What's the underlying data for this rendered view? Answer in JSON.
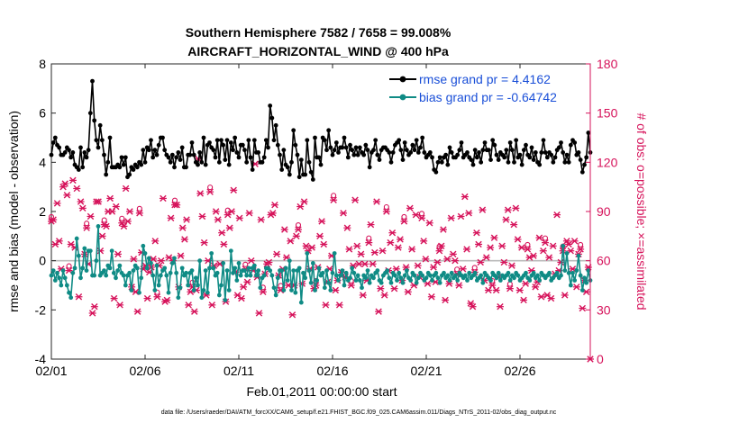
{
  "chart_data": {
    "type": "line",
    "title": "Southern Hemisphere 7582 / 7658 = 99.008%",
    "subtitle": "AIRCRAFT_HORIZONTAL_WIND @ 400 hPa",
    "ylabel_left": "rmse and bias (model - observation)",
    "ylabel_right": "# of obs: o=possible; ×=assimilated",
    "xlabel": "Feb.01,2011 00:00:00 start",
    "footer": "data file: /Users/raeder/DAI/ATM_forcXX/CAM6_setup/f.e21.FHIST_BGC.f09_025.CAM6assim.011/Diags_NTrS_2011-02/obs_diag_output.nc",
    "xlim": [
      0,
      28.75
    ],
    "ylim_left": [
      -4,
      8
    ],
    "ylim_right": [
      0,
      180
    ],
    "x_ticks": [
      {
        "label": "02/01",
        "value": 0
      },
      {
        "label": "02/06",
        "value": 5
      },
      {
        "label": "02/11",
        "value": 10
      },
      {
        "label": "02/16",
        "value": 15
      },
      {
        "label": "02/21",
        "value": 20
      },
      {
        "label": "02/26",
        "value": 25
      }
    ],
    "y_ticks_left": [
      -4,
      -2,
      0,
      2,
      4,
      6,
      8
    ],
    "y_ticks_right": [
      0,
      30,
      60,
      90,
      120,
      150,
      180
    ],
    "colors": {
      "rmse": "#000000",
      "bias": "#0f8b85",
      "obs": "#d6125a",
      "zero_line": "#bbbbbb",
      "legend_text": "#1a4fd8"
    },
    "series": [
      {
        "name": "rmse grand pr = 4.4162",
        "axis": "left",
        "values": [
          4.3,
          4.8,
          5.0,
          4.7,
          4.6,
          4.3,
          4.3,
          4.4,
          4.6,
          4.5,
          4.2,
          4.4,
          3.9,
          3.8,
          3.7,
          4.6,
          3.8,
          4.4,
          4.2,
          4.5,
          6.0,
          7.3,
          5.7,
          4.9,
          4.6,
          5.5,
          4.9,
          4.3,
          3.5,
          4.0,
          5.0,
          3.8,
          3.8,
          3.8,
          3.9,
          3.8,
          4.2,
          3.9,
          4.2,
          3.4,
          3.5,
          3.8,
          3.7,
          3.9,
          3.8,
          4.0,
          3.9,
          4.5,
          4.0,
          4.6,
          4.5,
          4.9,
          4.2,
          4.5,
          4.3,
          4.7,
          5.0,
          5.0,
          4.5,
          4.3,
          4.2,
          4.0,
          4.3,
          3.8,
          4.2,
          4.4,
          4.1,
          4.6,
          3.8,
          3.8,
          4.3,
          4.3,
          4.8,
          4.3,
          4.0,
          3.9,
          4.4,
          4.0,
          5.0,
          3.9,
          4.7,
          4.8,
          4.6,
          4.5,
          4.2,
          4.9,
          4.0,
          4.9,
          4.7,
          4.1,
          4.9,
          3.9,
          4.8,
          4.5,
          5.0,
          4.4,
          4.2,
          4.7,
          4.7,
          4.5,
          4.0,
          4.9,
          4.2,
          3.7,
          4.9,
          4.4,
          4.4,
          4.0,
          4.0,
          4.2,
          4.9,
          4.6,
          6.3,
          5.8,
          4.9,
          5.5,
          4.7,
          4.3,
          3.7,
          4.5,
          3.9,
          3.8,
          3.5,
          4.0,
          5.3,
          4.7,
          4.3,
          3.4,
          4.1,
          3.5,
          3.5,
          4.9,
          4.0,
          3.6,
          3.3,
          5.0,
          4.2,
          4.2,
          3.9,
          5.0,
          4.9,
          4.5,
          5.3,
          4.6,
          4.3,
          4.5,
          4.8,
          4.4,
          4.6,
          4.6,
          5.0,
          4.6,
          4.2,
          4.7,
          4.5,
          4.3,
          4.6,
          4.3,
          4.6,
          4.4,
          4.3,
          4.7,
          4.5,
          3.8,
          4.4,
          4.5,
          4.9,
          4.3,
          4.1,
          4.5,
          4.6,
          4.6,
          4.5,
          4.4,
          4.0,
          4.4,
          4.7,
          4.8,
          4.9,
          4.5,
          4.1,
          4.8,
          4.5,
          4.3,
          4.4,
          4.7,
          4.5,
          4.9,
          4.4,
          4.6,
          5.0,
          4.4,
          4.2,
          4.3,
          4.4,
          4.2,
          3.7,
          3.6,
          4.0,
          4.2,
          4.0,
          4.2,
          4.3,
          3.9,
          4.6,
          4.4,
          4.2,
          4.2,
          4.3,
          4.5,
          4.8,
          4.2,
          4.3,
          4.4,
          4.2,
          4.1,
          3.9,
          4.5,
          4.2,
          4.4,
          4.0,
          4.5,
          4.8,
          4.5,
          4.5,
          4.1,
          4.9,
          4.7,
          4.3,
          4.1,
          4.4,
          4.3,
          4.2,
          4.5,
          4.0,
          4.8,
          4.5,
          4.0,
          4.9,
          4.2,
          4.3,
          3.9,
          4.5,
          4.7,
          4.3,
          4.2,
          4.6,
          4.1,
          4.4,
          4.0,
          3.9,
          4.4,
          4.9,
          4.4,
          4.2,
          4.4,
          4.3,
          4.0,
          4.2,
          4.5,
          4.6,
          4.8,
          4.4,
          4.0,
          4.3,
          4.0,
          4.7,
          4.9,
          4.8,
          4.3,
          4.4,
          4.1,
          3.6,
          3.9,
          4.2,
          5.2,
          4.4
        ]
      },
      {
        "name": "bias grand pr = -0.64742",
        "axis": "left",
        "values": [
          -0.6,
          -0.4,
          -0.8,
          -0.5,
          -0.7,
          -1.0,
          -0.4,
          -0.7,
          -1.0,
          -1.3,
          -1.5,
          -0.5,
          -0.3,
          0.9,
          0.2,
          -0.7,
          -0.3,
          0.5,
          -0.4,
          0.4,
          0.4,
          -0.6,
          -0.6,
          0.0,
          1.4,
          -0.6,
          -0.5,
          -0.4,
          -0.6,
          -0.2,
          -0.3,
          0.4,
          -0.5,
          -0.7,
          -0.4,
          -0.2,
          -0.5,
          -0.6,
          -1.0,
          -0.6,
          -0.5,
          -1.2,
          -0.4,
          -0.2,
          -0.3,
          -1.3,
          -0.7,
          0.6,
          0.3,
          -0.3,
          0.1,
          -0.1,
          -0.6,
          -1.2,
          -0.2,
          -1.0,
          -0.6,
          -0.4,
          -0.3,
          -0.6,
          -1.3,
          -0.5,
          -0.1,
          0.1,
          -0.5,
          -1.5,
          -1.1,
          -0.3,
          -0.6,
          -0.5,
          -1.0,
          -0.5,
          -0.4,
          -1.2,
          -0.7,
          -1.0,
          0.0,
          -1.5,
          -1.2,
          -0.4,
          -1.3,
          -0.3,
          0.3,
          -0.3,
          -0.6,
          -0.5,
          -1.4,
          -1.0,
          -0.1,
          -1.6,
          -0.4,
          -1.2,
          0.4,
          -0.5,
          -0.3,
          -0.8,
          -0.1,
          -0.6,
          -0.4,
          -0.4,
          -0.6,
          -0.3,
          -0.6,
          -0.3,
          -0.2,
          -0.6,
          -0.4,
          -1.1,
          -0.7,
          -0.6,
          -0.3,
          -0.3,
          -0.4,
          -0.6,
          -1.1,
          -1.4,
          -0.7,
          -0.4,
          -0.4,
          -1.2,
          -0.3,
          -0.8,
          0.0,
          -1.2,
          -0.4,
          -1.3,
          -0.4,
          -0.3,
          -1.7,
          -0.5,
          -0.7,
          0.3,
          -0.4,
          -0.9,
          -0.1,
          -1.2,
          -0.8,
          -0.3,
          -0.6,
          -0.5,
          -1.1,
          -0.4,
          -0.9,
          -1.2,
          -0.5,
          0.3,
          -0.6,
          -0.8,
          -0.6,
          -0.4,
          -1.0,
          -0.5,
          -0.8,
          -0.7,
          -0.3,
          -0.5,
          -0.8,
          -0.6,
          -0.8,
          -1.1,
          -0.6,
          -0.7,
          -0.4,
          -0.9,
          -0.6,
          -0.7,
          -0.5,
          -0.4,
          -0.8,
          -0.9,
          -0.6,
          -0.5,
          -0.4,
          -0.7,
          -0.9,
          -0.5,
          -0.6,
          -0.8,
          -0.5,
          -0.7,
          -0.9,
          -0.6,
          -0.4,
          -0.7,
          -0.8,
          -0.5,
          -0.6,
          -0.9,
          -0.7,
          -0.5,
          -0.6,
          -0.8,
          -0.7,
          -0.5,
          -0.6,
          -0.8,
          -0.6,
          -0.5,
          -0.7,
          -0.9,
          -0.6,
          -0.5,
          -0.7,
          -0.6,
          -0.8,
          -0.5,
          -0.7,
          -0.6,
          -0.8,
          -0.5,
          -0.6,
          -0.7,
          -0.6,
          -0.8,
          -0.5,
          -0.7,
          -0.6,
          -0.5,
          -0.8,
          -0.7,
          -0.6,
          -0.9,
          -0.5,
          -0.6,
          -0.7,
          -0.8,
          -0.5,
          -0.6,
          -0.7,
          -0.5,
          -0.8,
          -0.6,
          -0.7,
          -0.6,
          -0.5,
          -0.8,
          -0.6,
          -0.7,
          -0.5,
          -0.6,
          -0.8,
          -0.7,
          -0.6,
          -0.5,
          -0.7,
          -0.8,
          -0.6,
          -0.5,
          -0.7,
          -0.6,
          -0.8,
          -0.5,
          -0.6,
          -0.7,
          -0.6,
          -0.5,
          -0.8,
          -0.7,
          -0.6,
          -0.5,
          -0.7,
          -0.6,
          0.6,
          -0.4,
          0.3,
          -0.5,
          -1.0,
          -0.5,
          -0.8,
          -0.4,
          0.2,
          -0.6,
          -1.2,
          -0.7,
          -0.9,
          -0.4,
          -0.8
        ]
      },
      {
        "name": "possible",
        "axis": "right",
        "values": [
          84,
          85,
          70,
          95,
          72,
          55,
          105,
          107,
          100,
          54,
          70,
          109,
          68,
          104,
          38,
          96,
          92,
          64,
          80,
          58,
          87,
          28,
          32,
          96,
          96,
          66,
          75,
          82,
          81,
          90,
          98,
          90,
          37,
          93,
          64,
          33,
          83,
          81,
          104,
          84,
          90,
          44,
          61,
          41,
          29,
          89,
          65,
          55,
          57,
          37,
          53,
          56,
          61,
          72,
          38,
          57,
          60,
          98,
          35,
          36,
          62,
          86,
          60,
          94,
          94,
          44,
          63,
          80,
          73,
          85,
          33,
          41,
          44,
          29,
          42,
          122,
          101,
          87,
          71,
          39,
          60,
          102,
          33,
          57,
          90,
          85,
          58,
          77,
          70,
          35,
          88,
          80,
          90,
          103,
          53,
          39,
          86,
          37,
          44,
          55,
          47,
          89,
          60,
          54,
          119,
          50,
          28,
          85,
          41,
          52,
          58,
          59,
          88,
          89,
          94,
          64,
          51,
          42,
          55,
          79,
          62,
          45,
          72,
          27,
          45,
          75,
          79,
          93,
          46,
          96,
          69,
          66,
          55,
          68,
          43,
          45,
          56,
          75,
          84,
          70,
          33,
          47,
          55,
          63,
          97,
          42,
          48,
          33,
          53,
          89,
          50,
          80,
          67,
          45,
          57,
          97,
          69,
          58,
          64,
          39,
          58,
          48,
          71,
          82,
          58,
          65,
          96,
          29,
          43,
          66,
          39,
          90,
          54,
          71,
          77,
          43,
          55,
          68,
          73,
          48,
          84,
          56,
          41,
          92,
          67,
          45,
          88,
          57,
          50,
          86,
          72,
          61,
          46,
          83,
          38,
          56,
          47,
          59,
          66,
          69,
          79,
          36,
          61,
          46,
          86,
          64,
          60,
          52,
          45,
          87,
          55,
          99,
          67,
          89,
          34,
          32,
          53,
          77,
          70,
          59,
          91,
          48,
          62,
          42,
          68,
          45,
          74,
          42,
          50,
          32,
          69,
          59,
          85,
          91,
          43,
          57,
          82,
          92,
          73,
          42,
          68,
          36,
          46,
          67,
          62,
          54,
          63,
          44,
          47,
          74,
          38,
          66,
          71,
          39,
          62,
          37,
          69,
          52,
          88,
          54,
          59,
          66,
          39,
          72,
          70,
          66,
          55,
          72,
          44,
          64,
          67,
          31,
          48,
          41,
          56,
          0
        ]
      }
    ],
    "legend": [
      {
        "label": "rmse grand pr = 4.4162",
        "series": "rmse"
      },
      {
        "label": "bias grand pr = -0.64742",
        "series": "bias"
      }
    ]
  }
}
